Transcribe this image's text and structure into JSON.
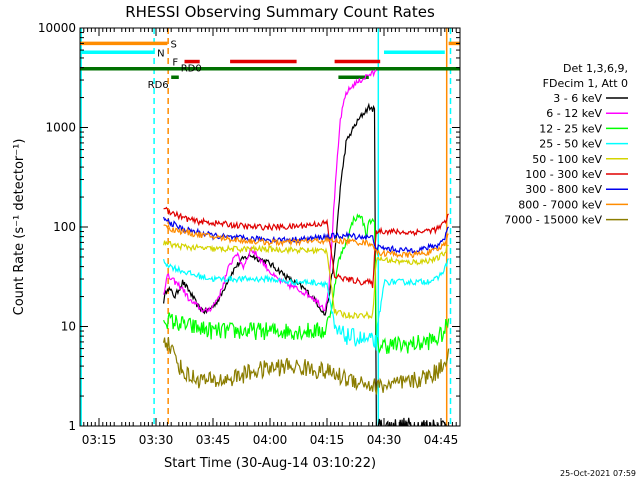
{
  "chart_data": {
    "type": "line",
    "title": "RHESSI Observing Summary Count Rates",
    "xlabel": "Start Time (30-Aug-14 03:10:22)",
    "ylabel": "Count Rate (s⁻¹ detector⁻¹)",
    "yscale": "log",
    "ylim": [
      1,
      10000
    ],
    "xlim_minutes_after_0310": [
      0,
      100
    ],
    "y_ticks": [
      {
        "value": 1,
        "label": "1"
      },
      {
        "value": 10,
        "label": "10"
      },
      {
        "value": 100,
        "label": "100"
      },
      {
        "value": 1000,
        "label": "1000"
      },
      {
        "value": 10000,
        "label": "10000"
      }
    ],
    "x_ticks": [
      {
        "minute": 5,
        "label": "03:15"
      },
      {
        "minute": 20,
        "label": "03:30"
      },
      {
        "minute": 35,
        "label": "03:45"
      },
      {
        "minute": 50,
        "label": "04:00"
      },
      {
        "minute": 65,
        "label": "04:15"
      },
      {
        "minute": 80,
        "label": "04:30"
      },
      {
        "minute": 95,
        "label": "04:45"
      }
    ],
    "legend": {
      "position": "right",
      "header": [
        "Det 1,3,6,9,",
        "FDecim 1, Att 0"
      ],
      "entries": [
        {
          "label": "3 - 6 keV",
          "color": "#000000"
        },
        {
          "label": "6 - 12 keV",
          "color": "#ff00ff"
        },
        {
          "label": "12 - 25 keV",
          "color": "#00ff00"
        },
        {
          "label": "25 - 50 keV",
          "color": "#00ffff"
        },
        {
          "label": "50 - 100 keV",
          "color": "#d4d400"
        },
        {
          "label": "100 - 300 keV",
          "color": "#e00000"
        },
        {
          "label": "300 - 800 keV",
          "color": "#0000ee"
        },
        {
          "label": "800 - 7000 keV",
          "color": "#ff8c00"
        },
        {
          "label": "7000 - 15000 keV",
          "color": "#8b7d00"
        }
      ]
    },
    "series": [
      {
        "name": "3 - 6 keV",
        "color": "#000000",
        "points": [
          [
            22,
            18
          ],
          [
            23,
            25
          ],
          [
            25,
            20
          ],
          [
            27,
            28
          ],
          [
            29,
            22
          ],
          [
            31,
            16
          ],
          [
            33,
            14
          ],
          [
            35,
            16
          ],
          [
            37,
            20
          ],
          [
            39,
            30
          ],
          [
            41,
            40
          ],
          [
            43,
            48
          ],
          [
            45,
            52
          ],
          [
            47,
            48
          ],
          [
            49,
            45
          ],
          [
            51,
            40
          ],
          [
            53,
            35
          ],
          [
            55,
            30
          ],
          [
            57,
            27
          ],
          [
            59,
            24
          ],
          [
            61,
            20
          ],
          [
            63,
            16
          ],
          [
            64.5,
            13
          ],
          [
            65.5,
            20
          ],
          [
            67,
            50
          ],
          [
            68.5,
            250
          ],
          [
            70,
            700
          ],
          [
            72,
            1000
          ],
          [
            74,
            1300
          ],
          [
            76,
            1600
          ],
          [
            77.5,
            1500
          ],
          [
            78,
            1
          ],
          [
            97,
            1
          ]
        ]
      },
      {
        "name": "6 - 12 keV",
        "color": "#ff00ff",
        "points": [
          [
            22,
            22
          ],
          [
            23,
            32
          ],
          [
            25,
            28
          ],
          [
            27,
            24
          ],
          [
            29,
            18
          ],
          [
            31,
            16
          ],
          [
            33,
            14
          ],
          [
            35,
            16
          ],
          [
            37,
            22
          ],
          [
            39,
            38
          ],
          [
            41,
            55
          ],
          [
            43,
            40
          ],
          [
            45,
            60
          ],
          [
            47,
            50
          ],
          [
            49,
            40
          ],
          [
            51,
            32
          ],
          [
            53,
            28
          ],
          [
            55,
            26
          ],
          [
            57,
            24
          ],
          [
            59,
            22
          ],
          [
            61,
            20
          ],
          [
            63,
            17
          ],
          [
            64.5,
            15
          ],
          [
            65.5,
            25
          ],
          [
            67,
            200
          ],
          [
            68.5,
            1200
          ],
          [
            70,
            2200
          ],
          [
            72,
            2700
          ],
          [
            74,
            3000
          ],
          [
            76,
            3400
          ],
          [
            77.5,
            3500
          ],
          [
            78,
            3700
          ]
        ]
      },
      {
        "name": "12 - 25 keV",
        "color": "#00ff00",
        "points": [
          [
            22,
            12
          ],
          [
            25,
            11
          ],
          [
            29,
            10
          ],
          [
            35,
            9
          ],
          [
            45,
            9
          ],
          [
            55,
            9
          ],
          [
            62,
            9
          ],
          [
            64.5,
            9
          ],
          [
            66,
            14
          ],
          [
            68,
            45
          ],
          [
            70,
            70
          ],
          [
            72,
            120
          ],
          [
            74,
            130
          ],
          [
            75.5,
            80
          ],
          [
            76,
            120
          ],
          [
            77.5,
            110
          ],
          [
            78,
            6.5
          ],
          [
            85,
            6.5
          ],
          [
            90,
            6.8
          ],
          [
            94,
            7.5
          ],
          [
            96,
            9
          ],
          [
            97,
            12
          ]
        ]
      },
      {
        "name": "25 - 50 keV",
        "color": "#00ffff",
        "points": [
          [
            22,
            45
          ],
          [
            24,
            40
          ],
          [
            27,
            36
          ],
          [
            30,
            33
          ],
          [
            35,
            30
          ],
          [
            40,
            30
          ],
          [
            45,
            30
          ],
          [
            50,
            30
          ],
          [
            55,
            28
          ],
          [
            60,
            28
          ],
          [
            65,
            27
          ],
          [
            67,
            9
          ],
          [
            70,
            8
          ],
          [
            74,
            7.5
          ],
          [
            77,
            7
          ],
          [
            78,
            7
          ],
          [
            80,
            28
          ],
          [
            85,
            28
          ],
          [
            90,
            28
          ],
          [
            94,
            30
          ],
          [
            96,
            38
          ],
          [
            97,
            48
          ]
        ]
      },
      {
        "name": "50 - 100 keV",
        "color": "#d4d400",
        "points": [
          [
            22,
            70
          ],
          [
            25,
            65
          ],
          [
            30,
            62
          ],
          [
            35,
            60
          ],
          [
            40,
            60
          ],
          [
            45,
            60
          ],
          [
            50,
            60
          ],
          [
            55,
            59
          ],
          [
            60,
            58
          ],
          [
            65,
            58
          ],
          [
            67,
            14
          ],
          [
            70,
            13
          ],
          [
            74,
            13
          ],
          [
            76,
            13
          ],
          [
            77,
            13
          ],
          [
            78,
            48
          ],
          [
            82,
            46
          ],
          [
            86,
            44
          ],
          [
            90,
            45
          ],
          [
            94,
            48
          ],
          [
            96,
            55
          ],
          [
            97,
            65
          ]
        ]
      },
      {
        "name": "100 - 300 keV",
        "color": "#e00000",
        "points": [
          [
            22,
            160
          ],
          [
            24,
            140
          ],
          [
            27,
            125
          ],
          [
            30,
            115
          ],
          [
            35,
            110
          ],
          [
            40,
            105
          ],
          [
            45,
            100
          ],
          [
            50,
            100
          ],
          [
            55,
            100
          ],
          [
            60,
            105
          ],
          [
            65,
            110
          ],
          [
            67,
            32
          ],
          [
            70,
            30
          ],
          [
            74,
            28
          ],
          [
            76,
            28
          ],
          [
            77,
            26
          ],
          [
            78,
            92
          ],
          [
            82,
            90
          ],
          [
            86,
            88
          ],
          [
            90,
            90
          ],
          [
            94,
            95
          ],
          [
            96,
            110
          ],
          [
            97,
            135
          ]
        ]
      },
      {
        "name": "300 - 800 keV",
        "color": "#0000ee",
        "points": [
          [
            22,
            120
          ],
          [
            24,
            110
          ],
          [
            27,
            95
          ],
          [
            30,
            90
          ],
          [
            35,
            82
          ],
          [
            40,
            78
          ],
          [
            45,
            76
          ],
          [
            50,
            75
          ],
          [
            55,
            74
          ],
          [
            60,
            76
          ],
          [
            65,
            80
          ],
          [
            70,
            82
          ],
          [
            74,
            80
          ],
          [
            77,
            78
          ],
          [
            78,
            62
          ],
          [
            82,
            60
          ],
          [
            86,
            58
          ],
          [
            90,
            60
          ],
          [
            94,
            65
          ],
          [
            96,
            78
          ],
          [
            97,
            100
          ]
        ]
      },
      {
        "name": "800 - 7000 keV",
        "color": "#ff8c00",
        "points": [
          [
            22,
            110
          ],
          [
            24,
            95
          ],
          [
            27,
            90
          ],
          [
            30,
            85
          ],
          [
            35,
            80
          ],
          [
            40,
            75
          ],
          [
            45,
            72
          ],
          [
            50,
            70
          ],
          [
            55,
            70
          ],
          [
            60,
            72
          ],
          [
            65,
            73
          ],
          [
            70,
            72
          ],
          [
            74,
            70
          ],
          [
            77,
            68
          ],
          [
            78,
            55
          ],
          [
            82,
            54
          ],
          [
            86,
            52
          ],
          [
            90,
            54
          ],
          [
            94,
            58
          ],
          [
            96,
            68
          ],
          [
            97,
            85
          ]
        ]
      },
      {
        "name": "7000 - 15000 keV",
        "color": "#8b7d00",
        "points": [
          [
            22,
            8
          ],
          [
            24,
            6
          ],
          [
            27,
            3.5
          ],
          [
            30,
            3
          ],
          [
            35,
            2.8
          ],
          [
            40,
            3
          ],
          [
            45,
            3.5
          ],
          [
            50,
            3.8
          ],
          [
            55,
            4
          ],
          [
            60,
            3.8
          ],
          [
            65,
            3.5
          ],
          [
            70,
            3
          ],
          [
            74,
            2.8
          ],
          [
            77,
            2.5
          ],
          [
            78,
            2.5
          ],
          [
            82,
            2.6
          ],
          [
            86,
            2.7
          ],
          [
            90,
            3
          ],
          [
            94,
            3.5
          ],
          [
            96,
            4.5
          ],
          [
            97,
            6
          ]
        ]
      }
    ],
    "flags": [
      {
        "label": "S",
        "color": "#ff8c00",
        "y": 7000,
        "segments": [
          [
            0,
            23
          ],
          [
            97,
            100
          ]
        ]
      },
      {
        "label": "N",
        "color": "#00ffff",
        "y": 5700,
        "segments": [
          [
            0,
            19.5
          ],
          [
            80,
            96
          ]
        ]
      },
      {
        "label": "F",
        "color": "#e00000",
        "y": 4600,
        "segments": [
          [
            27.5,
            31.5
          ],
          [
            39.5,
            57
          ],
          [
            67,
            79
          ]
        ]
      },
      {
        "label": "RD0",
        "color": "#007000",
        "y": 3900,
        "segments": [
          [
            0,
            100
          ]
        ]
      },
      {
        "label": "RD6",
        "color": "#007000",
        "y": 3200,
        "segments": [
          [
            24,
            26
          ],
          [
            68,
            76
          ]
        ]
      }
    ],
    "vertical_markers": [
      {
        "minute": 0.3,
        "color": "#00ffff",
        "style": "solid"
      },
      {
        "minute": 19.5,
        "color": "#00ffff",
        "style": "dashed"
      },
      {
        "minute": 23.2,
        "color": "#ff8c00",
        "style": "dashed"
      },
      {
        "minute": 78.5,
        "color": "#00ffff",
        "style": "solid"
      },
      {
        "minute": 96.5,
        "color": "#ff8c00",
        "style": "solid"
      },
      {
        "minute": 97.5,
        "color": "#00ffff",
        "style": "dashed"
      }
    ]
  },
  "footer_timestamp": "25-Oct-2021 07:59"
}
